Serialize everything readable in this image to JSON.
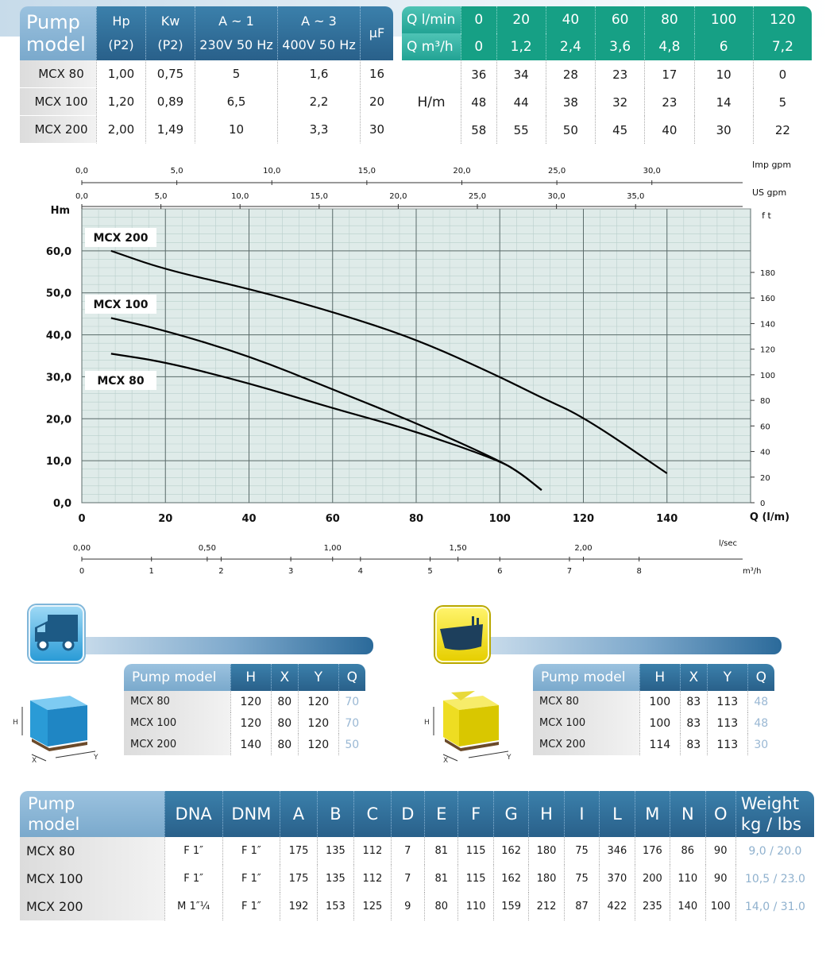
{
  "table_perf": {
    "model_header": [
      "Pump",
      "model"
    ],
    "headers": [
      {
        "l1": "Hp",
        "l2": "(P2)"
      },
      {
        "l1": "Kw",
        "l2": "(P2)"
      },
      {
        "l1": "A ~ 1",
        "l2": "230V 50 Hz"
      },
      {
        "l1": "A ~ 3",
        "l2": "400V 50 Hz"
      },
      {
        "l1": "μF",
        "l2": ""
      }
    ],
    "rows": [
      {
        "model": "MCX 80",
        "vals": [
          "1,00",
          "0,75",
          "5",
          "1,6",
          "16"
        ]
      },
      {
        "model": "MCX 100",
        "vals": [
          "1,20",
          "0,89",
          "6,5",
          "2,2",
          "20"
        ]
      },
      {
        "model": "MCX 200",
        "vals": [
          "2,00",
          "1,49",
          "10",
          "3,3",
          "30"
        ]
      }
    ]
  },
  "table_flow": {
    "q_lmin_label": "Q l/min",
    "q_m3h_label": "Q m³/h",
    "q_lmin": [
      "0",
      "20",
      "40",
      "60",
      "80",
      "100",
      "120"
    ],
    "q_m3h": [
      "0",
      "1,2",
      "2,4",
      "3,6",
      "4,8",
      "6",
      "7,2"
    ],
    "h_label": "H/m",
    "rows": [
      [
        "36",
        "34",
        "28",
        "23",
        "17",
        "10",
        "0"
      ],
      [
        "48",
        "44",
        "38",
        "32",
        "23",
        "14",
        "5"
      ],
      [
        "58",
        "55",
        "50",
        "45",
        "40",
        "30",
        "22"
      ]
    ]
  },
  "chart_data": {
    "type": "line",
    "xlabel": "Q (l/m)",
    "ylabel": "Hm",
    "xlim": [
      0,
      160
    ],
    "ylim": [
      0,
      70
    ],
    "x_ticks": [
      "0",
      "20",
      "40",
      "60",
      "80",
      "100",
      "120",
      "140"
    ],
    "y_ticks": [
      "0,0",
      "10,0",
      "20,0",
      "30,0",
      "40,0",
      "50,0",
      "60,0"
    ],
    "ft_label": "f t",
    "ft_ticks": [
      "0",
      "20",
      "40",
      "60",
      "80",
      "100",
      "120",
      "140",
      "160",
      "180"
    ],
    "imp_label": "Imp gpm",
    "imp_ticks": [
      "0,0",
      "5,0",
      "10,0",
      "15,0",
      "20,0",
      "25,0",
      "30,0"
    ],
    "us_label": "US gpm",
    "us_ticks": [
      "0,0",
      "5,0",
      "10,0",
      "15,0",
      "20,0",
      "25,0",
      "30,0",
      "35,0"
    ],
    "lsec_label": "l/sec",
    "lsec_ticks": [
      "0,00",
      "0,50",
      "1,00",
      "1,50",
      "2,00"
    ],
    "m3h_label": "m³/h",
    "m3h_ticks": [
      "0",
      "1",
      "2",
      "3",
      "4",
      "5",
      "6",
      "7",
      "8"
    ],
    "series": [
      {
        "name": "MCX 200",
        "x": [
          7,
          20,
          40,
          60,
          80,
          100,
          110,
          120,
          140
        ],
        "y": [
          60,
          55.5,
          51,
          45.5,
          39,
          30,
          25,
          20.5,
          7
        ]
      },
      {
        "name": "MCX 100",
        "x": [
          7,
          20,
          40,
          60,
          80,
          100,
          105,
          110
        ],
        "y": [
          44,
          41,
          35,
          27,
          19,
          10,
          7,
          3
        ]
      },
      {
        "name": "MCX 80",
        "x": [
          7,
          20,
          40,
          60,
          80,
          100,
          105,
          110
        ],
        "y": [
          35.5,
          33.5,
          28.5,
          22.5,
          17,
          10,
          7,
          3
        ]
      }
    ]
  },
  "pack_truck": {
    "headers": [
      "Pump model",
      "H",
      "X",
      "Y",
      "Q"
    ],
    "rows": [
      [
        "MCX 80",
        "120",
        "80",
        "120",
        "70"
      ],
      [
        "MCX 100",
        "120",
        "80",
        "120",
        "70"
      ],
      [
        "MCX 200",
        "140",
        "80",
        "120",
        "50"
      ]
    ],
    "axis": {
      "h": "H",
      "x": "X",
      "y": "Y"
    }
  },
  "pack_ship": {
    "headers": [
      "Pump model",
      "H",
      "X",
      "Y",
      "Q"
    ],
    "rows": [
      [
        "MCX 80",
        "100",
        "83",
        "113",
        "48"
      ],
      [
        "MCX 100",
        "100",
        "83",
        "113",
        "48"
      ],
      [
        "MCX 200",
        "114",
        "83",
        "113",
        "30"
      ]
    ],
    "axis": {
      "h": "H",
      "x": "X",
      "y": "Y"
    }
  },
  "dims": {
    "model_header": [
      "Pump",
      "model"
    ],
    "headers": [
      "DNA",
      "DNM",
      "A",
      "B",
      "C",
      "D",
      "E",
      "F",
      "G",
      "H",
      "I",
      "L",
      "M",
      "N",
      "O"
    ],
    "weight_header": [
      "Weight",
      "kg / lbs"
    ],
    "rows": [
      {
        "model": "MCX 80",
        "vals": [
          "F 1″",
          "F 1″",
          "175",
          "135",
          "112",
          "7",
          "81",
          "115",
          "162",
          "180",
          "75",
          "346",
          "176",
          "86",
          "90"
        ],
        "w": "9,0 / 20.0"
      },
      {
        "model": "MCX 100",
        "vals": [
          "F 1″",
          "F 1″",
          "175",
          "135",
          "112",
          "7",
          "81",
          "115",
          "162",
          "180",
          "75",
          "370",
          "200",
          "110",
          "90"
        ],
        "w": "10,5 / 23.0"
      },
      {
        "model": "MCX 200",
        "vals": [
          "M 1″¼",
          "F 1″",
          "192",
          "153",
          "125",
          "9",
          "80",
          "110",
          "159",
          "212",
          "87",
          "422",
          "235",
          "140",
          "100"
        ],
        "w": "14,0 / 31.0"
      }
    ]
  },
  "colors": {
    "blue": "#29608a",
    "light_blue": "#8fb6d6",
    "teal": "#16a085",
    "grid_bg": "#dfebe9"
  }
}
